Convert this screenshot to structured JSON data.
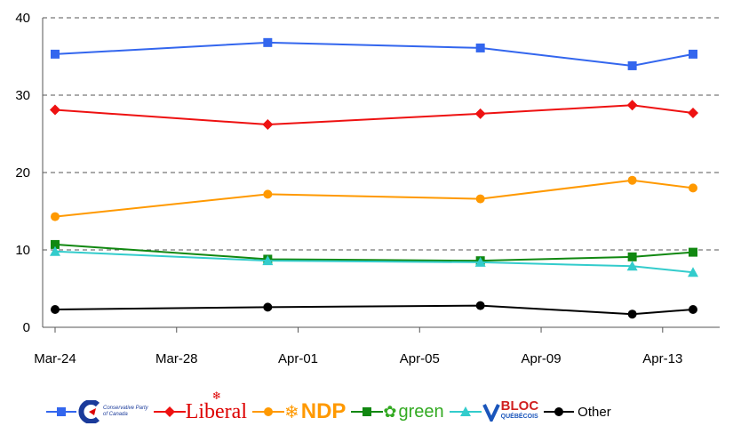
{
  "chart_data": {
    "type": "line",
    "categories": [
      "Mar-24",
      "Mar-31",
      "Apr-07",
      "Apr-12",
      "Apr-14"
    ],
    "x_tick_labels": [
      "Mar-24",
      "Mar-28",
      "Apr-01",
      "Apr-05",
      "Apr-09",
      "Apr-13"
    ],
    "x_day_values": [
      0,
      7,
      14,
      19,
      21
    ],
    "x_tick_days": [
      0,
      4,
      8,
      12,
      16,
      20
    ],
    "xlim_days": [
      0,
      21
    ],
    "ylim": [
      0,
      40
    ],
    "y_ticks": [
      0,
      10,
      20,
      30,
      40
    ],
    "grid": "horizontal dashed",
    "legend_position": "bottom",
    "series": [
      {
        "name": "Conservative Party of Canada",
        "color": "#3366ee",
        "marker": "square",
        "values": [
          35.3,
          36.8,
          36.1,
          33.8,
          35.3
        ]
      },
      {
        "name": "Liberal",
        "color": "#ee1111",
        "marker": "diamond",
        "values": [
          28.1,
          26.2,
          27.6,
          28.7,
          27.7
        ]
      },
      {
        "name": "NDP",
        "color": "#ff9900",
        "marker": "circle",
        "values": [
          14.3,
          17.2,
          16.6,
          19.0,
          18.0
        ]
      },
      {
        "name": "green",
        "color": "#118811",
        "marker": "square",
        "values": [
          10.7,
          8.8,
          8.6,
          9.1,
          9.7
        ]
      },
      {
        "name": "BLOC QUEBECOIS",
        "color": "#33cccc",
        "marker": "triangle",
        "values": [
          9.8,
          8.6,
          8.4,
          7.9,
          7.1
        ]
      },
      {
        "name": "Other",
        "color": "#000000",
        "marker": "circle",
        "values": [
          2.3,
          2.6,
          2.8,
          1.7,
          2.3
        ]
      }
    ]
  },
  "legend": {
    "conservative_line1": "Conservative Party",
    "conservative_line2": "of Canada",
    "liberal": "Liberal",
    "ndp": "NDP",
    "green": "green",
    "bloc_line1": "BLOC",
    "bloc_line2": "QUÉBÉCOIS",
    "other": "Other"
  }
}
